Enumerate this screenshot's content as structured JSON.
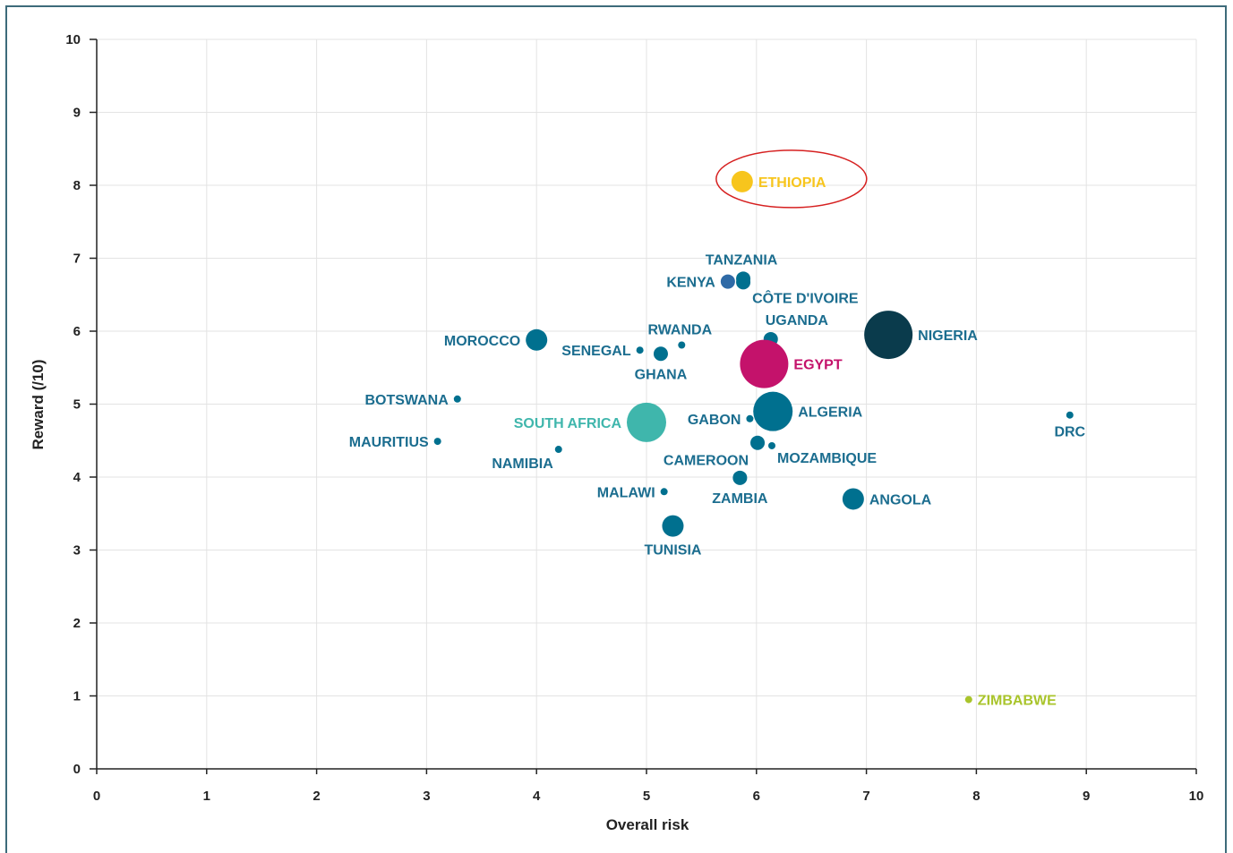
{
  "chart_data": {
    "type": "scatter",
    "title": "",
    "xlabel": "Overall risk",
    "ylabel": "Reward (/10)",
    "xlim": [
      0,
      10
    ],
    "ylim": [
      0,
      10
    ],
    "xticks": [
      "0",
      "1",
      "2",
      "3",
      "4",
      "5",
      "6",
      "7",
      "8",
      "9",
      "10"
    ],
    "yticks": [
      "0",
      "1",
      "2",
      "3",
      "4",
      "5",
      "6",
      "7",
      "8",
      "9",
      "10"
    ],
    "grid": true,
    "colors": {
      "default": "#00708f",
      "ethiopia": "#f7c51d",
      "egypt": "#c4126b",
      "south_africa": "#3fb6ac",
      "nigeria": "#0a3b4c",
      "zimbabwe": "#a9c42b",
      "kenya": "#2f6aa6",
      "highlight": "#d62020"
    },
    "highlight": {
      "country": "ETHIOPIA",
      "shape": "ellipse"
    },
    "points": [
      {
        "name": "ETHIOPIA",
        "x": 5.87,
        "y": 8.05,
        "size": "medium",
        "color": "#f7c51d",
        "label_pos": "right"
      },
      {
        "name": "TANZANIA",
        "x": 5.88,
        "y": 6.72,
        "size": "small",
        "color": "#00708f",
        "label_pos": "top"
      },
      {
        "name": "KENYA",
        "x": 5.74,
        "y": 6.68,
        "size": "small",
        "color": "#2f6aa6",
        "label_pos": "left"
      },
      {
        "name": "CÔTE D'IVOIRE",
        "x": 5.88,
        "y": 6.67,
        "size": "small",
        "color": "#00708f",
        "label_pos": "bottom-right"
      },
      {
        "name": "RWANDA",
        "x": 5.32,
        "y": 5.81,
        "size": "tiny",
        "color": "#00708f",
        "label_pos": "top"
      },
      {
        "name": "UGANDA",
        "x": 6.13,
        "y": 5.89,
        "size": "small",
        "color": "#00708f",
        "label_pos": "top-right"
      },
      {
        "name": "NIGERIA",
        "x": 7.2,
        "y": 5.95,
        "size": "xlarge",
        "color": "#0a3b4c",
        "label_pos": "right"
      },
      {
        "name": "MOROCCO",
        "x": 4.0,
        "y": 5.88,
        "size": "medium",
        "color": "#00708f",
        "label_pos": "left"
      },
      {
        "name": "SENEGAL",
        "x": 4.94,
        "y": 5.74,
        "size": "tiny",
        "color": "#00708f",
        "label_pos": "left"
      },
      {
        "name": "GHANA",
        "x": 5.13,
        "y": 5.69,
        "size": "small",
        "color": "#00708f",
        "label_pos": "bottom"
      },
      {
        "name": "EGYPT",
        "x": 6.07,
        "y": 5.55,
        "size": "xlarge",
        "color": "#c4126b",
        "label_pos": "right"
      },
      {
        "name": "BOTSWANA",
        "x": 3.28,
        "y": 5.07,
        "size": "tiny",
        "color": "#00708f",
        "label_pos": "left"
      },
      {
        "name": "GABON",
        "x": 5.94,
        "y": 4.8,
        "size": "tiny",
        "color": "#00708f",
        "label_pos": "left"
      },
      {
        "name": "ALGERIA",
        "x": 6.15,
        "y": 4.9,
        "size": "large",
        "color": "#00708f",
        "label_pos": "right"
      },
      {
        "name": "SOUTH AFRICA",
        "x": 5.0,
        "y": 4.75,
        "size": "large",
        "color": "#3fb6ac",
        "label_pos": "left"
      },
      {
        "name": "DRC",
        "x": 8.85,
        "y": 4.85,
        "size": "tiny",
        "color": "#00708f",
        "label_pos": "bottom"
      },
      {
        "name": "MAURITIUS",
        "x": 3.1,
        "y": 4.49,
        "size": "tiny",
        "color": "#00708f",
        "label_pos": "left"
      },
      {
        "name": "CAMEROON",
        "x": 6.01,
        "y": 4.47,
        "size": "small",
        "color": "#00708f",
        "label_pos": "bottom-left"
      },
      {
        "name": "MOZAMBIQUE",
        "x": 6.14,
        "y": 4.43,
        "size": "tiny",
        "color": "#00708f",
        "label_pos": "bottom-right"
      },
      {
        "name": "NAMIBIA",
        "x": 4.2,
        "y": 4.38,
        "size": "tiny",
        "color": "#00708f",
        "label_pos": "bottom-left"
      },
      {
        "name": "ZAMBIA",
        "x": 5.85,
        "y": 3.99,
        "size": "small",
        "color": "#00708f",
        "label_pos": "bottom"
      },
      {
        "name": "MALAWI",
        "x": 5.16,
        "y": 3.8,
        "size": "tiny",
        "color": "#00708f",
        "label_pos": "left"
      },
      {
        "name": "ANGOLA",
        "x": 6.88,
        "y": 3.7,
        "size": "medium",
        "color": "#00708f",
        "label_pos": "right"
      },
      {
        "name": "TUNISIA",
        "x": 5.24,
        "y": 3.33,
        "size": "medium",
        "color": "#00708f",
        "label_pos": "bottom"
      },
      {
        "name": "ZIMBABWE",
        "x": 7.93,
        "y": 0.95,
        "size": "tiny",
        "color": "#a9c42b",
        "label_pos": "right"
      }
    ]
  }
}
